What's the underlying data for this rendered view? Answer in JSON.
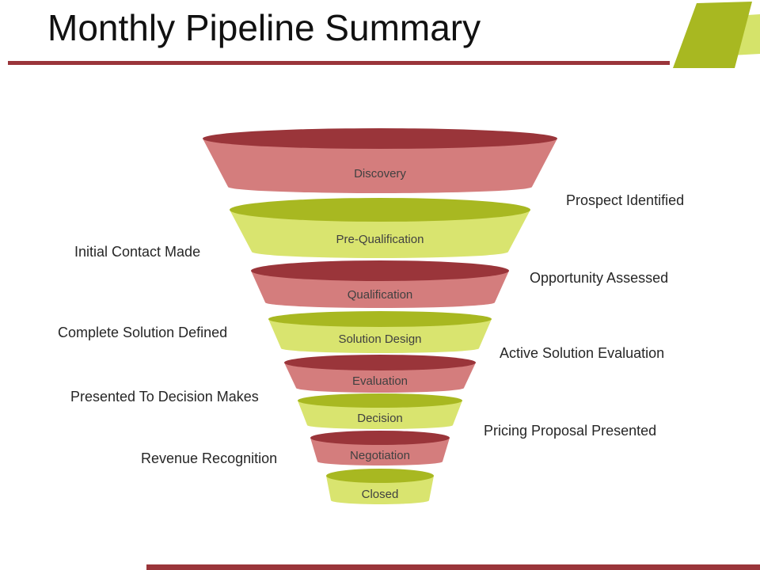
{
  "title": "Monthly Pipeline Summary",
  "colors": {
    "red_top": "#9a353a",
    "red_body": "#d47d7d",
    "green_top": "#a8b821",
    "green_body": "#d9e46f",
    "rule": "#9a353a",
    "accent_green": "#a8b821",
    "accent_light": "#d5e36a"
  },
  "stages": [
    {
      "label": "Discovery",
      "tone": "red"
    },
    {
      "label": "Pre-Qualification",
      "tone": "green"
    },
    {
      "label": "Qualification",
      "tone": "red"
    },
    {
      "label": "Solution Design",
      "tone": "green"
    },
    {
      "label": "Evaluation",
      "tone": "red"
    },
    {
      "label": "Decision",
      "tone": "green"
    },
    {
      "label": "Negotiation",
      "tone": "red"
    },
    {
      "label": "Closed",
      "tone": "green"
    }
  ],
  "notes_right": [
    "Prospect Identified",
    "Opportunity Assessed",
    "Active Solution Evaluation",
    "Pricing Proposal Presented"
  ],
  "notes_left": [
    "Initial Contact Made",
    "Complete Solution Defined",
    "Presented To Decision Makes",
    "Revenue Recognition"
  ]
}
